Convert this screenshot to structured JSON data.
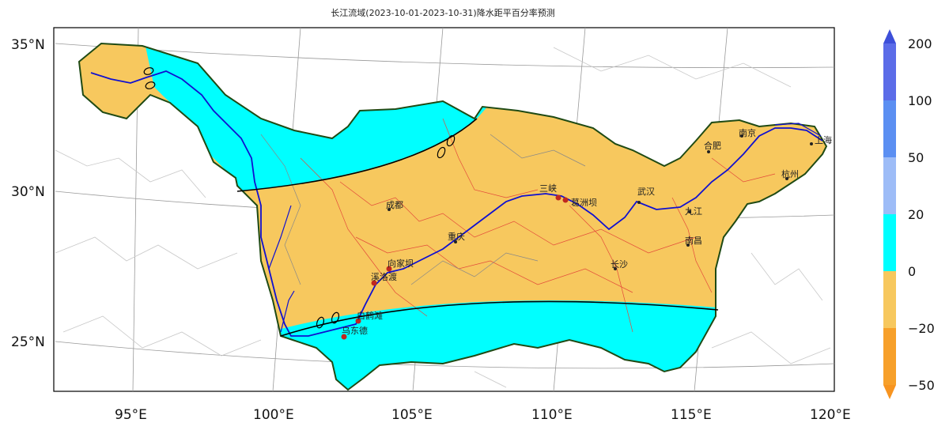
{
  "title": "长江流域(2023-10-01-2023-10-31)降水距平百分率预测",
  "lat_labels": [
    "35°N",
    "30°N",
    "25°N"
  ],
  "lon_labels": [
    "95°E",
    "100°E",
    "105°E",
    "110°E",
    "115°E",
    "120°E"
  ],
  "colorbar": {
    "levels": [
      "200",
      "100",
      "50",
      "20",
      "0",
      "−20",
      "−50"
    ],
    "colors": {
      "gt_200": "#3d4fd9",
      "100_200": "#5b6ce8",
      "50_100": "#5b8ff2",
      "20_50": "#9dbcf7",
      "0_20": "#00ffff",
      "neg20_0": "#f7c85e",
      "neg50_neg20": "#f7a02a",
      "lt_neg50": "#f79420"
    }
  },
  "cities": [
    "成都",
    "重庆",
    "三峡",
    "葛洲坝",
    "武汉",
    "九江",
    "南昌",
    "长沙",
    "合肥",
    "南京",
    "杭州",
    "上海",
    "向家坝",
    "溪洛渡",
    "白鹤滩",
    "乌东德"
  ],
  "contour_labels": [
    "0",
    "0",
    "0",
    "0",
    "0"
  ],
  "colors": {
    "river": "#1010d0",
    "basin_border": "#1f4a14",
    "contour": "#000000"
  }
}
